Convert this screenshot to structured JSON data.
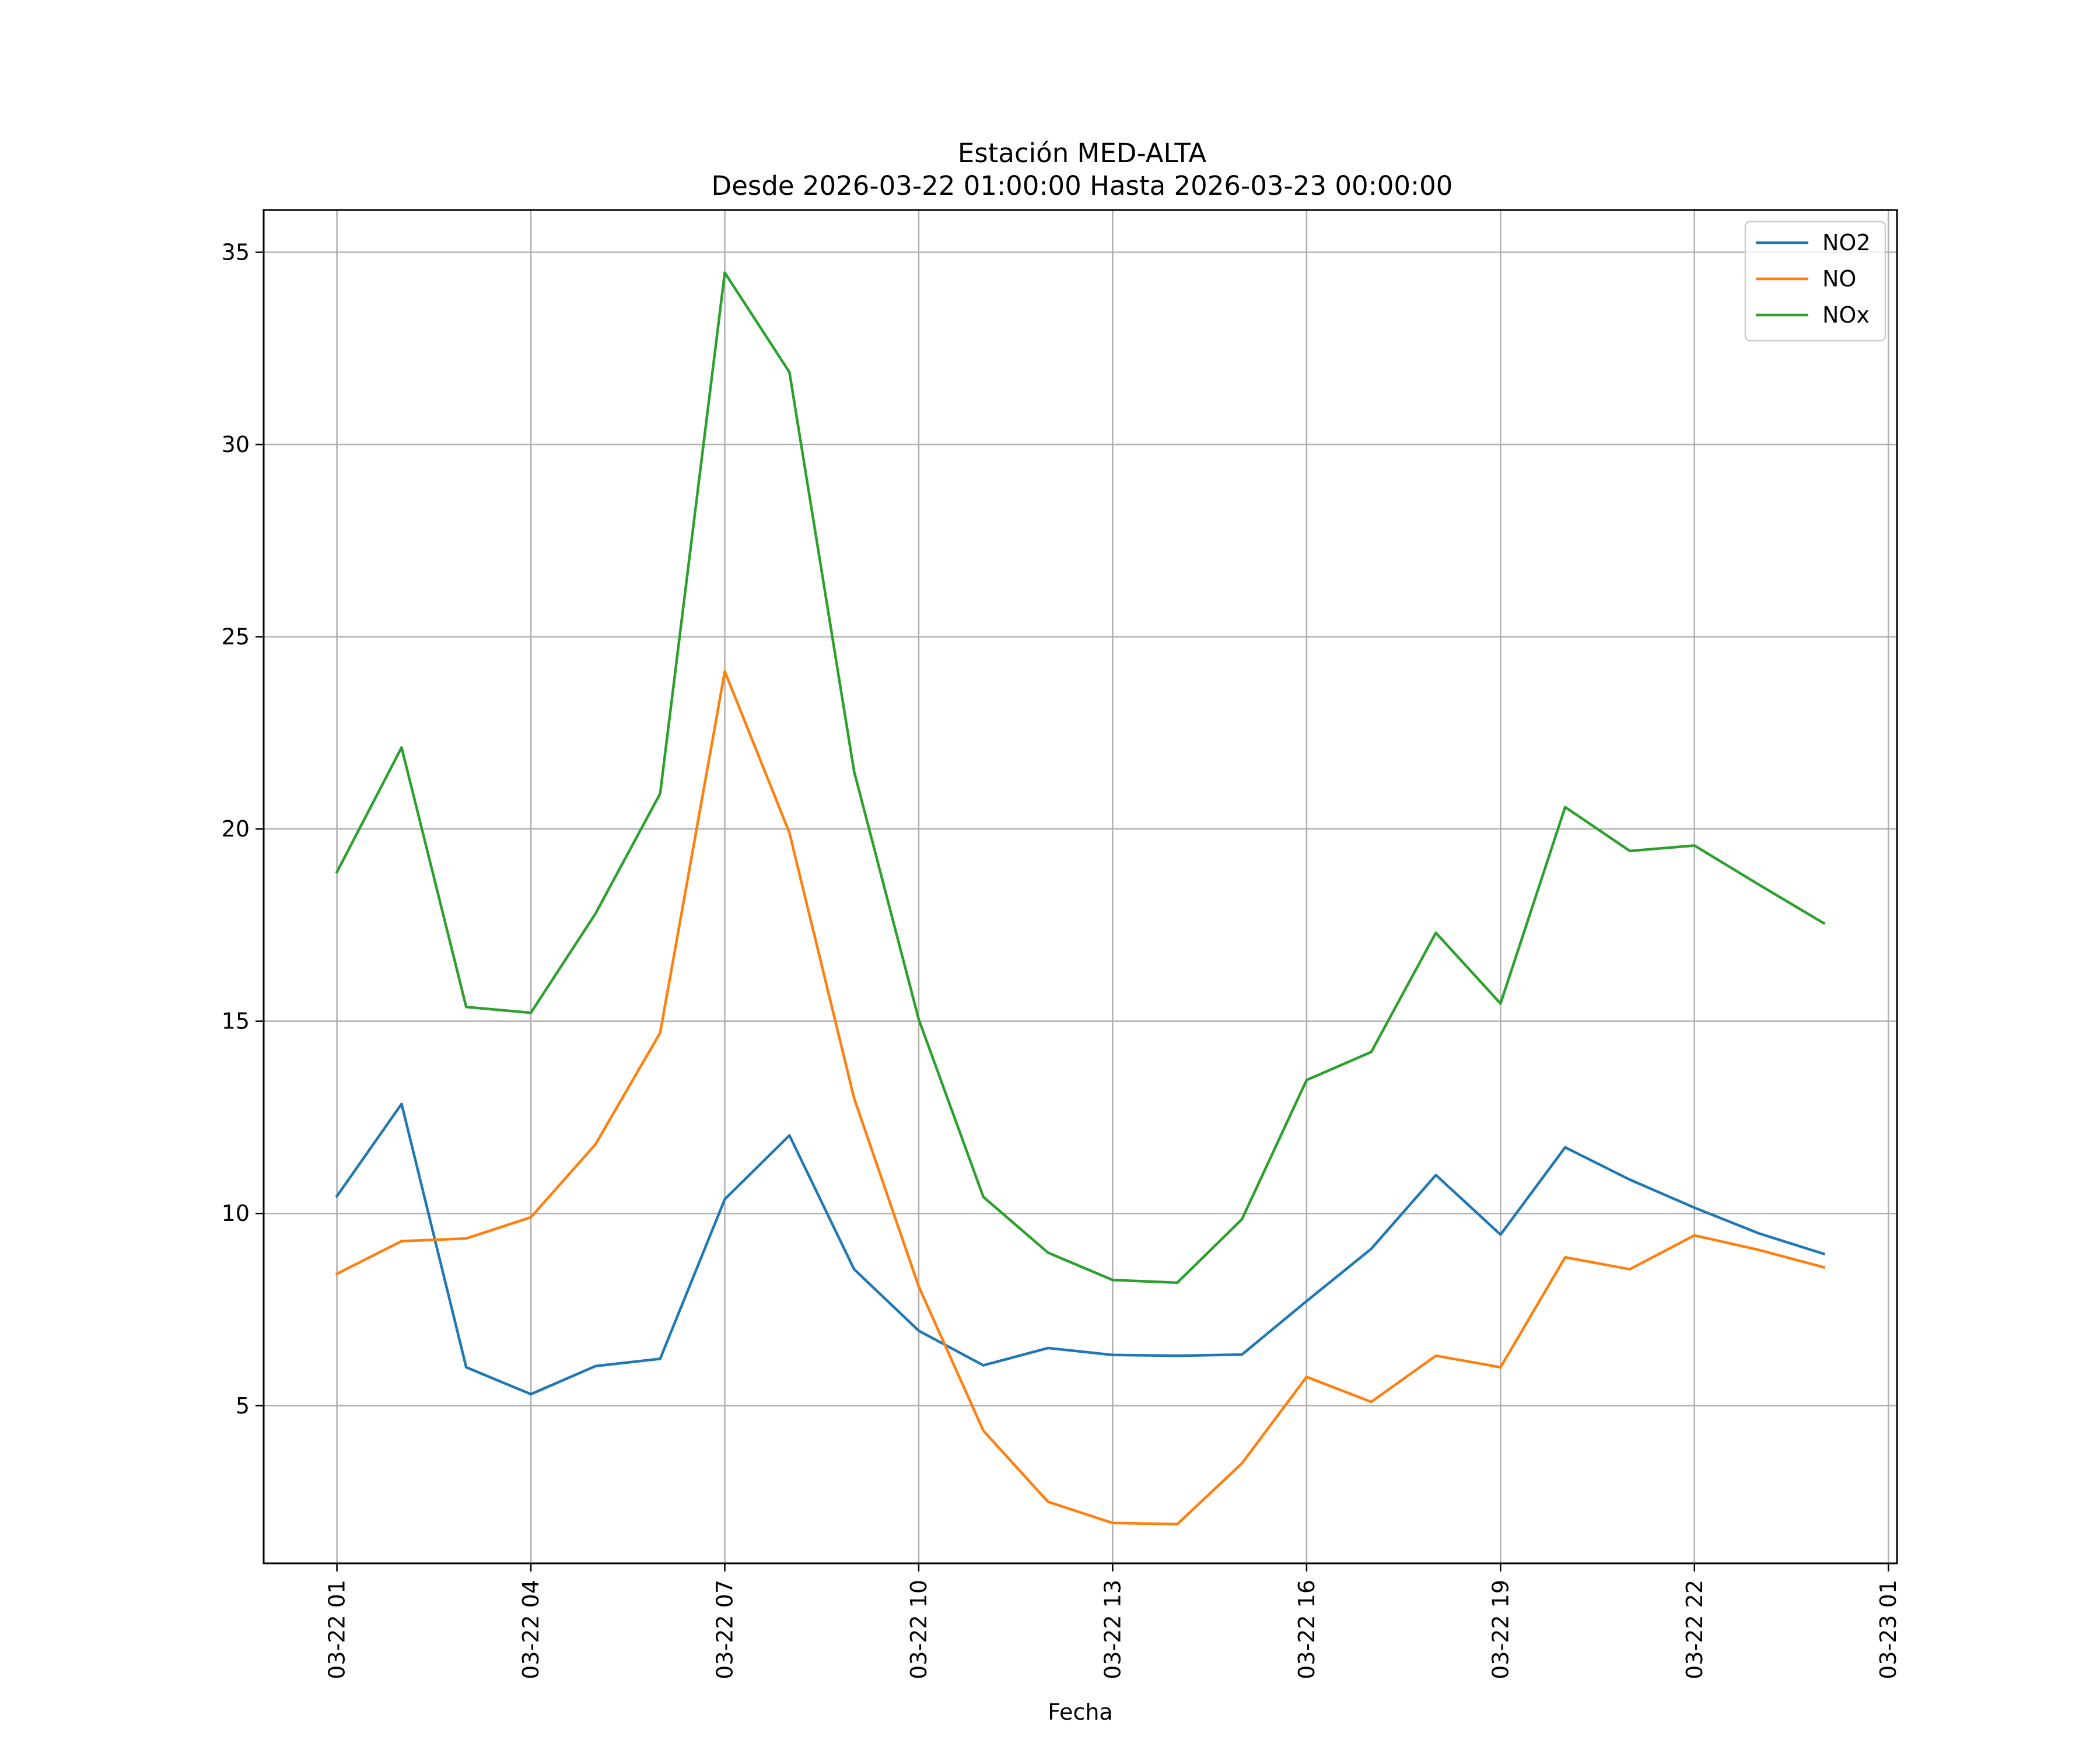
{
  "chart_data": {
    "type": "line",
    "title": "Estación MED-ALTA",
    "subtitle": "Desde 2026-03-22 01:00:00 Hasta 2026-03-23 00:00:00",
    "xlabel": "Fecha",
    "ylabel": "",
    "x": [
      "2026-03-22 01:00",
      "2026-03-22 02:00",
      "2026-03-22 03:00",
      "2026-03-22 04:00",
      "2026-03-22 05:00",
      "2026-03-22 06:00",
      "2026-03-22 07:00",
      "2026-03-22 08:00",
      "2026-03-22 09:00",
      "2026-03-22 10:00",
      "2026-03-22 11:00",
      "2026-03-22 12:00",
      "2026-03-22 13:00",
      "2026-03-22 14:00",
      "2026-03-22 15:00",
      "2026-03-22 16:00",
      "2026-03-22 17:00",
      "2026-03-22 18:00",
      "2026-03-22 19:00",
      "2026-03-22 20:00",
      "2026-03-22 21:00",
      "2026-03-22 22:00",
      "2026-03-22 23:00",
      "2026-03-23 00:00"
    ],
    "x_ticks": [
      "03-22 01",
      "03-22 04",
      "03-22 07",
      "03-22 10",
      "03-22 13",
      "03-22 16",
      "03-22 19",
      "03-22 22",
      "03-23 01"
    ],
    "xlim": [
      "2026-03-21 23:52",
      "2026-03-23 01:08"
    ],
    "y_ticks": [
      5,
      10,
      15,
      20,
      25,
      30,
      35
    ],
    "ylim": [
      0.9,
      36.1
    ],
    "grid": true,
    "legend_position": "top-right",
    "series": [
      {
        "name": "NO2",
        "color": "#1f77b4",
        "values": [
          10.45,
          12.85,
          6.0,
          5.3,
          6.03,
          6.22,
          10.37,
          12.03,
          8.55,
          6.95,
          6.05,
          6.5,
          6.32,
          6.3,
          6.33,
          7.72,
          9.08,
          11.0,
          9.45,
          11.72,
          10.88,
          10.15,
          9.48,
          8.95
        ]
      },
      {
        "name": "NO",
        "color": "#ff7f0e",
        "values": [
          8.43,
          9.28,
          9.35,
          9.9,
          11.8,
          14.7,
          24.1,
          19.9,
          13.0,
          8.1,
          4.35,
          2.5,
          1.95,
          1.92,
          3.5,
          5.75,
          5.1,
          6.3,
          6.0,
          8.86,
          8.55,
          9.43,
          9.05,
          8.6
        ]
      },
      {
        "name": "NOx",
        "color": "#2ca02c",
        "values": [
          18.88,
          22.12,
          15.37,
          15.22,
          17.8,
          20.92,
          34.47,
          31.88,
          21.5,
          15.05,
          10.43,
          8.98,
          8.27,
          8.2,
          9.85,
          13.47,
          14.2,
          17.3,
          15.46,
          20.57,
          19.43,
          19.57,
          18.55,
          17.55
        ]
      }
    ]
  }
}
